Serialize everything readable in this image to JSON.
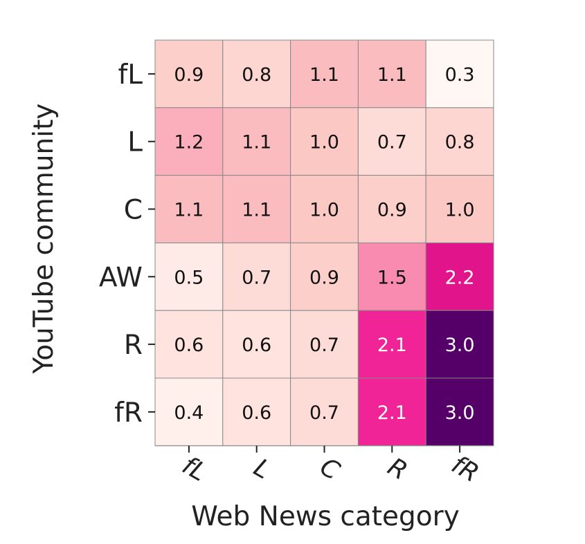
{
  "chart_data": {
    "type": "heatmap",
    "xlabel": "Web News category",
    "ylabel": "YouTube community",
    "x_categories": [
      "fL",
      "L",
      "C",
      "R",
      "fR"
    ],
    "y_categories": [
      "fL",
      "L",
      "C",
      "AW",
      "R",
      "fR"
    ],
    "values": [
      [
        0.9,
        0.8,
        1.1,
        1.1,
        0.3
      ],
      [
        1.2,
        1.1,
        1.0,
        0.7,
        0.8
      ],
      [
        1.1,
        1.1,
        1.0,
        0.9,
        1.0
      ],
      [
        0.5,
        0.7,
        0.9,
        1.5,
        2.2
      ],
      [
        0.6,
        0.6,
        0.7,
        2.1,
        3.0
      ],
      [
        0.4,
        0.6,
        0.7,
        2.1,
        3.0
      ]
    ],
    "value_labels": [
      [
        "0.9",
        "0.8",
        "1.1",
        "1.1",
        "0.3"
      ],
      [
        "1.2",
        "1.1",
        "1.0",
        "0.7",
        "0.8"
      ],
      [
        "1.1",
        "1.1",
        "1.0",
        "0.9",
        "1.0"
      ],
      [
        "0.5",
        "0.7",
        "0.9",
        "1.5",
        "2.2"
      ],
      [
        "0.6",
        "0.6",
        "0.7",
        "2.1",
        "3.0"
      ],
      [
        "0.4",
        "0.6",
        "0.7",
        "2.1",
        "3.0"
      ]
    ],
    "colormap": "RdPu",
    "colors": {
      "low": "#fff7f3",
      "mid_low": "#fcc5c0",
      "mid": "#f768a1",
      "high": "#e0158e",
      "max": "#49006a",
      "cell_border": "#888888"
    }
  }
}
